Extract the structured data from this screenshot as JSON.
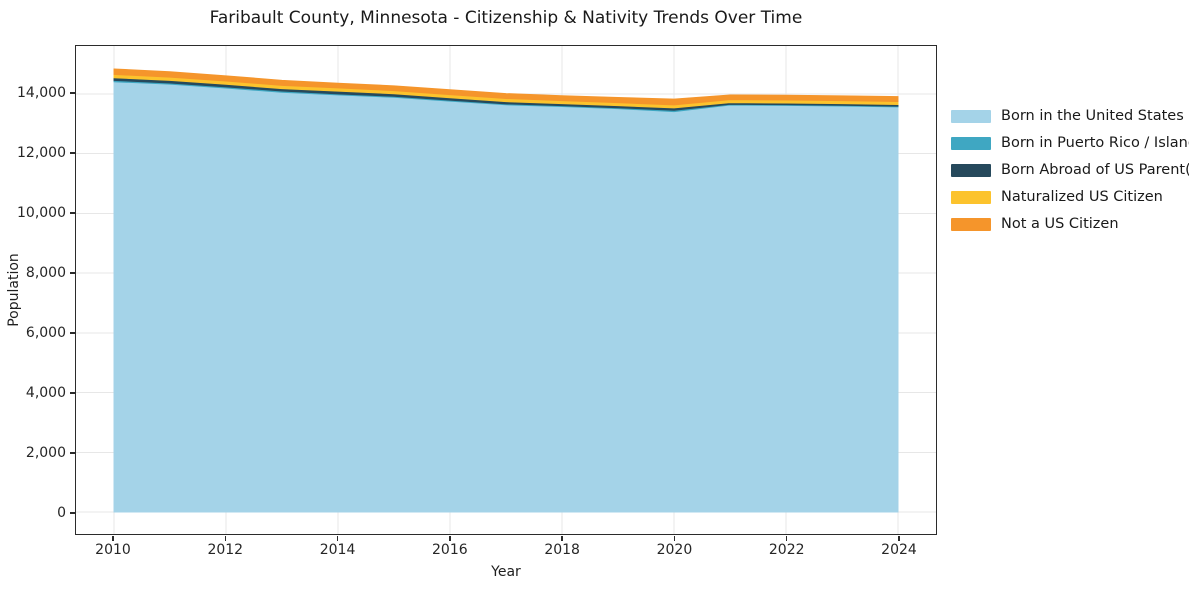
{
  "title": "Faribault County, Minnesota - Citizenship & Nativity Trends Over Time",
  "chart_data": {
    "type": "area",
    "stacked": true,
    "title": "Faribault County, Minnesota - Citizenship & Nativity Trends Over Time",
    "xlabel": "Year",
    "ylabel": "Population",
    "grid": true,
    "legend_position": "right",
    "xlim": [
      2009.323,
      2024.677
    ],
    "ylim": [
      -733,
      15600
    ],
    "x": [
      2010,
      2011,
      2012,
      2013,
      2014,
      2015,
      2016,
      2017,
      2018,
      2019,
      2020,
      2021,
      2022,
      2023,
      2024
    ],
    "series": [
      {
        "name": "Born in the United States",
        "color": "#a4d3e8",
        "values": [
          14400,
          14320,
          14190,
          14050,
          13960,
          13880,
          13750,
          13630,
          13570,
          13500,
          13400,
          13620,
          13610,
          13590,
          13560
        ]
      },
      {
        "name": "Born in Puerto Rico / Islands",
        "color": "#3fa7c2",
        "values": [
          45,
          40,
          40,
          40,
          35,
          35,
          35,
          30,
          30,
          30,
          45,
          25,
          25,
          25,
          25
        ]
      },
      {
        "name": "Born Abroad of US Parent(s)",
        "color": "#26495c",
        "values": [
          90,
          85,
          85,
          80,
          90,
          85,
          80,
          75,
          70,
          70,
          80,
          55,
          55,
          55,
          55
        ]
      },
      {
        "name": "Naturalized US Citizen",
        "color": "#fcc32d",
        "values": [
          110,
          110,
          110,
          110,
          110,
          105,
          105,
          105,
          100,
          100,
          100,
          100,
          100,
          100,
          100
        ]
      },
      {
        "name": "Not a US Citizen",
        "color": "#f5952b",
        "values": [
          190,
          185,
          180,
          175,
          160,
          165,
          170,
          170,
          170,
          180,
          200,
          165,
          165,
          165,
          170
        ]
      }
    ],
    "xticks": {
      "values": [
        2010,
        2012,
        2014,
        2016,
        2018,
        2020,
        2022,
        2024
      ],
      "labels": [
        "2010",
        "2012",
        "2014",
        "2016",
        "2018",
        "2020",
        "2022",
        "2024"
      ]
    },
    "yticks": {
      "values": [
        0,
        2000,
        4000,
        6000,
        8000,
        10000,
        12000,
        14000
      ],
      "labels": [
        "0",
        "2,000",
        "4,000",
        "6,000",
        "8,000",
        "10,000",
        "12,000",
        "14,000"
      ]
    },
    "grid_color": "#e7e7e7"
  }
}
